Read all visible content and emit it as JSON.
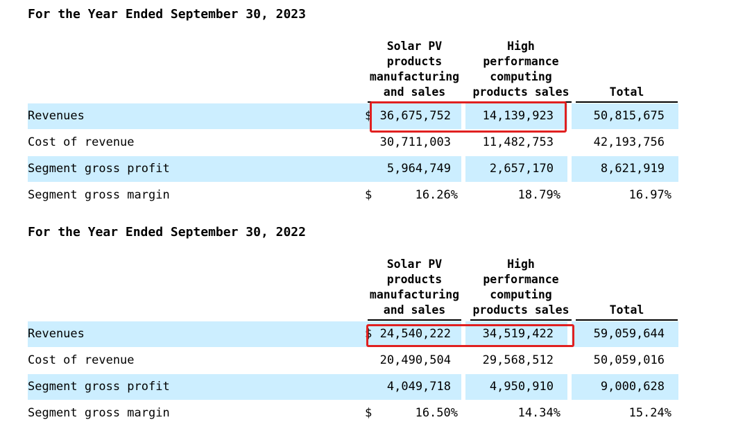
{
  "sections": [
    {
      "title": "For the Year Ended September 30, 2023",
      "headers": {
        "solar": [
          "Solar PV",
          "products",
          "manufacturing",
          "and sales"
        ],
        "hpc": [
          "High",
          "performance",
          "computing",
          "products sales"
        ],
        "total": [
          "Total"
        ]
      },
      "rows": [
        {
          "label": "Revenues",
          "dollar": "$",
          "solar": "36,675,752",
          "hpc": "14,139,923",
          "total": "50,815,675"
        },
        {
          "label": "Cost of revenue",
          "dollar": "",
          "solar": "30,711,003",
          "hpc": "11,482,753",
          "total": "42,193,756"
        },
        {
          "label": "Segment gross profit",
          "dollar": "",
          "solar": "5,964,749",
          "hpc": "2,657,170",
          "total": "8,621,919"
        },
        {
          "label": "Segment gross margin",
          "dollar": "$",
          "solar": "16.26%",
          "hpc": "18.79%",
          "total": "16.97%"
        }
      ]
    },
    {
      "title": "For the Year Ended September 30, 2022",
      "headers": {
        "solar": [
          "Solar PV",
          "products",
          "manufacturing",
          "and sales"
        ],
        "hpc": [
          "High",
          "performance",
          "computing",
          "products sales"
        ],
        "total": [
          "Total"
        ]
      },
      "rows": [
        {
          "label": "Revenues",
          "dollar": "$",
          "solar": "24,540,222",
          "hpc": "34,519,422",
          "total": "59,059,644"
        },
        {
          "label": "Cost of revenue",
          "dollar": "",
          "solar": "20,490,504",
          "hpc": "29,568,512",
          "total": "50,059,016"
        },
        {
          "label": "Segment gross profit",
          "dollar": "",
          "solar": "4,049,718",
          "hpc": "4,950,910",
          "total": "9,000,628"
        },
        {
          "label": "Segment gross margin",
          "dollar": "$",
          "solar": "16.50%",
          "hpc": "14.34%",
          "total": "15.24%"
        }
      ]
    }
  ],
  "colors": {
    "row_shade": "#cceeff",
    "highlight_border": "#e02020"
  }
}
